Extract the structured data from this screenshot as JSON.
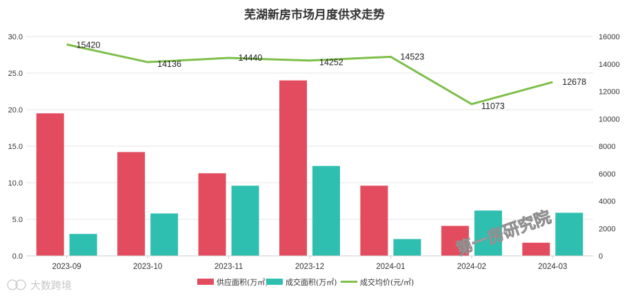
{
  "chart_data": {
    "type": "bar",
    "title": "芜湖新房市场月度供求走势",
    "categories": [
      "2023-09",
      "2023-10",
      "2023-11",
      "2023-12",
      "2024-01",
      "2024-02",
      "2024-03"
    ],
    "series": [
      {
        "name": "供应面积(万㎡)",
        "type": "bar",
        "axis": "left",
        "color": "#e34b5f",
        "values": [
          19.5,
          14.2,
          11.3,
          24.0,
          9.6,
          4.1,
          1.8
        ]
      },
      {
        "name": "成交面积(万㎡)",
        "type": "bar",
        "axis": "left",
        "color": "#2fbfb0",
        "values": [
          3.0,
          5.8,
          9.6,
          12.3,
          2.3,
          6.2,
          5.9
        ]
      },
      {
        "name": "成交均价(元/㎡)",
        "type": "line",
        "axis": "right",
        "color": "#7dbf48",
        "values": [
          15420,
          14136,
          14440,
          14252,
          14523,
          11073,
          12678
        ]
      }
    ],
    "y_left": {
      "min": 0,
      "max": 30,
      "ticks": [
        "0.0",
        "5.0",
        "10.0",
        "15.0",
        "20.0",
        "25.0",
        "30.0"
      ]
    },
    "y_right": {
      "min": 0,
      "max": 16000,
      "ticks": [
        "0",
        "2000",
        "4000",
        "6000",
        "8000",
        "10000",
        "12000",
        "14000",
        "16000"
      ]
    },
    "grid": true,
    "legend_position": "bottom-center"
  },
  "watermarks": {
    "center": "第一房研究院",
    "corner": "大数跨境"
  }
}
